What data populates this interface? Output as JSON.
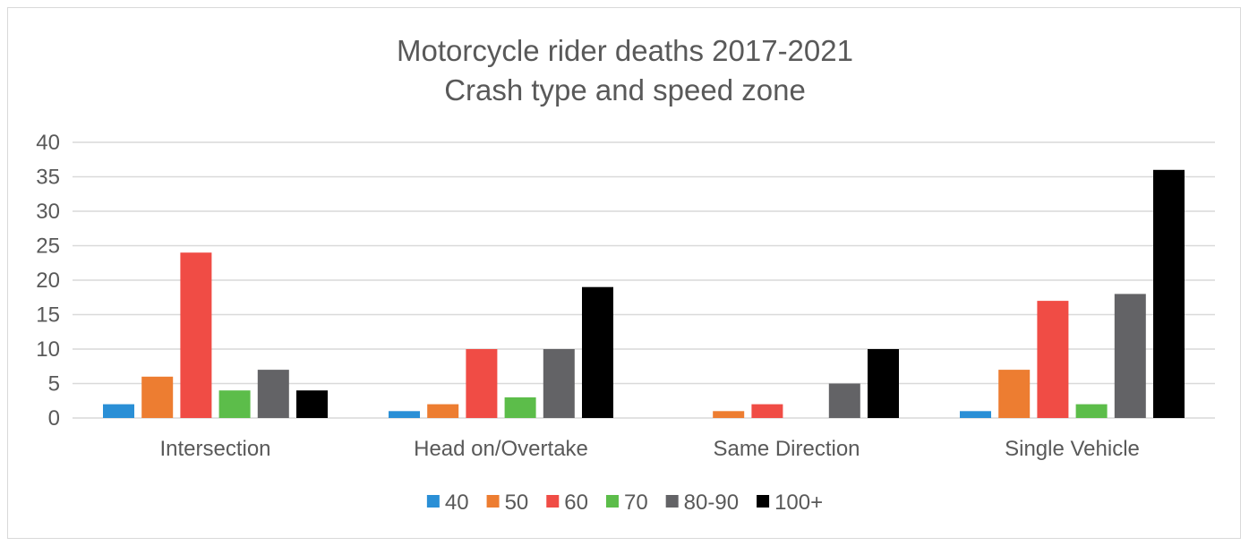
{
  "chart_data": {
    "type": "bar",
    "title": "Motorcycle rider deaths 2017-2021",
    "subtitle": "Crash type and speed zone",
    "xlabel": "",
    "ylabel": "",
    "ylim": [
      0,
      40
    ],
    "yticks": [
      "0",
      "5",
      "10",
      "15",
      "20",
      "25",
      "30",
      "35",
      "40"
    ],
    "grid": true,
    "legend_position": "bottom",
    "categories": [
      "Intersection",
      "Head on/Overtake",
      "Same Direction",
      "Single Vehicle"
    ],
    "series": [
      {
        "name": "40",
        "color": "#2a8fd6",
        "values": [
          2,
          1,
          0,
          1
        ]
      },
      {
        "name": "50",
        "color": "#ed7d31",
        "values": [
          6,
          2,
          1,
          7
        ]
      },
      {
        "name": "60",
        "color": "#f04c45",
        "values": [
          24,
          10,
          2,
          17
        ]
      },
      {
        "name": "70",
        "color": "#5cbd4a",
        "values": [
          4,
          3,
          0,
          2
        ]
      },
      {
        "name": "80-90",
        "color": "#636366",
        "values": [
          7,
          10,
          5,
          18
        ]
      },
      {
        "name": "100+",
        "color": "#000000",
        "values": [
          4,
          19,
          10,
          36
        ]
      }
    ]
  }
}
